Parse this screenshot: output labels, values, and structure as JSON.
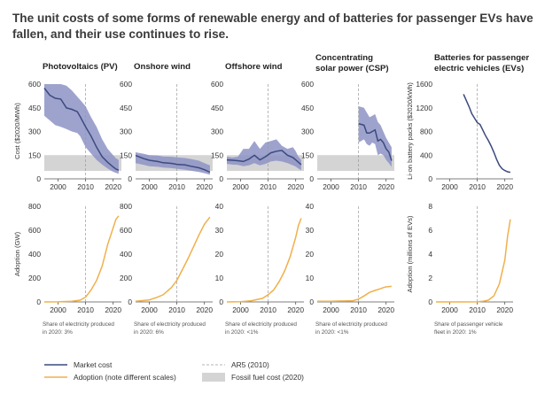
{
  "title": "The unit costs of some forms of renewable energy and of batteries for passenger EVs have fallen, and their use continues to rise.",
  "colors": {
    "market_cost": "#3c4a7c",
    "cost_range": "#8d93c6",
    "adoption": "#f0b04a",
    "fossil_band": "#d4d4d4",
    "ar5_line": "#9a9a9a"
  },
  "legend": {
    "market_cost": "Market cost",
    "adoption": "Adoption (note different scales)",
    "ar5": "AR5 (2010)",
    "fossil": "Fossil fuel cost (2020)"
  },
  "cost_ylabel_energy": "Cost ($2020/MWh)",
  "cost_ylabel_batteries": "Li-on battery packs ($2020/kWh)",
  "adoption_ylabel_energy": "Adoption (GW)",
  "adoption_ylabel_evs": "Adoption (millions of EVs)",
  "fossil_cost_range": [
    50,
    150
  ],
  "ar5_year": 2010,
  "chart_data": [
    {
      "type": "line",
      "panel": "Photovoltaics (PV)",
      "cost": {
        "xlim": [
          1995,
          2023
        ],
        "ylim": [
          0,
          600
        ],
        "yticks": [
          0,
          150,
          300,
          450,
          600
        ],
        "xticks": [
          2000,
          2010,
          2020
        ],
        "x": [
          1995,
          1997,
          1999,
          2001,
          2003,
          2005,
          2007,
          2008,
          2010,
          2012,
          2014,
          2016,
          2018,
          2020,
          2021,
          2022
        ],
        "market_cost": [
          575,
          530,
          510,
          505,
          450,
          440,
          425,
          395,
          330,
          270,
          200,
          140,
          105,
          75,
          62,
          55
        ],
        "range_low": [
          400,
          370,
          340,
          330,
          315,
          300,
          290,
          270,
          200,
          160,
          120,
          90,
          65,
          45,
          38,
          32
        ],
        "range_high": [
          600,
          600,
          600,
          600,
          590,
          560,
          520,
          500,
          460,
          390,
          330,
          250,
          190,
          150,
          130,
          120
        ],
        "fossil_band": true
      },
      "adoption": {
        "xlim": [
          1995,
          2023
        ],
        "ylim": [
          0,
          800
        ],
        "yticks": [
          0,
          200,
          400,
          600,
          800
        ],
        "xticks": [
          2000,
          2010,
          2020
        ],
        "x": [
          1995,
          2000,
          2005,
          2008,
          2010,
          2012,
          2014,
          2016,
          2018,
          2020,
          2021,
          2022
        ],
        "values": [
          0,
          1,
          5,
          15,
          40,
          100,
          180,
          300,
          480,
          620,
          690,
          720
        ]
      },
      "share": "Share of electricity produced in 2020: 3%"
    },
    {
      "type": "line",
      "panel": "Onshore wind",
      "cost": {
        "xlim": [
          1995,
          2023
        ],
        "ylim": [
          0,
          600
        ],
        "yticks": [
          0,
          150,
          300,
          450,
          600
        ],
        "xticks": [
          2000,
          2010,
          2020
        ],
        "x": [
          1995,
          1998,
          2000,
          2003,
          2005,
          2008,
          2010,
          2013,
          2015,
          2018,
          2020,
          2022
        ],
        "market_cost": [
          148,
          128,
          118,
          110,
          102,
          98,
          92,
          88,
          80,
          70,
          58,
          42
        ],
        "range_low": [
          100,
          88,
          80,
          76,
          72,
          68,
          64,
          58,
          52,
          44,
          36,
          26
        ],
        "range_high": [
          168,
          158,
          150,
          148,
          142,
          140,
          136,
          132,
          126,
          115,
          100,
          85
        ],
        "fossil_band": true
      },
      "adoption": {
        "xlim": [
          1995,
          2023
        ],
        "ylim": [
          0,
          800
        ],
        "yticks": [
          0,
          200,
          400,
          600,
          800
        ],
        "xticks": [
          2000,
          2010,
          2020
        ],
        "x": [
          1995,
          2000,
          2003,
          2005,
          2008,
          2010,
          2012,
          2014,
          2016,
          2018,
          2020,
          2022
        ],
        "values": [
          5,
          17,
          40,
          60,
          120,
          180,
          270,
          360,
          460,
          560,
          650,
          710
        ]
      },
      "share": "Share of electricity produced in 2020: 6%"
    },
    {
      "type": "line",
      "panel": "Offshore wind",
      "cost": {
        "xlim": [
          1995,
          2023
        ],
        "ylim": [
          0,
          600
        ],
        "yticks": [
          0,
          150,
          300,
          450,
          600
        ],
        "xticks": [
          2000,
          2010,
          2020
        ],
        "x": [
          1995,
          1997,
          1999,
          2001,
          2003,
          2005,
          2007,
          2009,
          2011,
          2013,
          2015,
          2017,
          2019,
          2020,
          2021,
          2022
        ],
        "market_cost": [
          120,
          118,
          115,
          110,
          125,
          150,
          120,
          140,
          165,
          175,
          180,
          150,
          135,
          120,
          105,
          90
        ],
        "range_low": [
          95,
          90,
          88,
          80,
          85,
          100,
          85,
          95,
          110,
          115,
          110,
          100,
          85,
          78,
          65,
          55
        ],
        "range_high": [
          140,
          135,
          140,
          190,
          190,
          240,
          190,
          230,
          240,
          250,
          210,
          190,
          200,
          175,
          140,
          120
        ],
        "fossil_band": true
      },
      "adoption": {
        "xlim": [
          1995,
          2023
        ],
        "ylim": [
          0,
          40
        ],
        "yticks": [
          0,
          10,
          20,
          30,
          40
        ],
        "xticks": [
          2000,
          2010,
          2020
        ],
        "x": [
          1995,
          2000,
          2004,
          2008,
          2010,
          2012,
          2014,
          2016,
          2018,
          2020,
          2021,
          2022
        ],
        "values": [
          0,
          0.1,
          0.5,
          1.5,
          3,
          5,
          8.5,
          13,
          19,
          27,
          32,
          35
        ]
      },
      "share": "Share of electricity produced in 2020: <1%"
    },
    {
      "type": "line",
      "panel": "Concentrating solar power (CSP)",
      "cost": {
        "xlim": [
          1995,
          2023
        ],
        "ylim": [
          0,
          600
        ],
        "yticks": [
          0,
          150,
          300,
          450,
          600
        ],
        "xticks": [
          2000,
          2010,
          2020
        ],
        "x": [
          2010,
          2012,
          2013,
          2014,
          2015,
          2016,
          2017,
          2018,
          2019,
          2020,
          2021,
          2022
        ],
        "market_cost": [
          350,
          340,
          290,
          290,
          300,
          310,
          240,
          250,
          230,
          190,
          170,
          115
        ],
        "range_low": [
          230,
          250,
          220,
          210,
          230,
          220,
          150,
          160,
          150,
          120,
          100,
          75
        ],
        "range_high": [
          460,
          450,
          420,
          390,
          400,
          410,
          360,
          340,
          300,
          260,
          230,
          200
        ],
        "fossil_band": true
      },
      "adoption": {
        "xlim": [
          1995,
          2023
        ],
        "ylim": [
          0,
          40
        ],
        "yticks": [
          0,
          10,
          20,
          30,
          40
        ],
        "xticks": [
          2000,
          2010,
          2020
        ],
        "x": [
          1995,
          2000,
          2005,
          2008,
          2010,
          2012,
          2014,
          2016,
          2018,
          2019,
          2020,
          2022
        ],
        "values": [
          0.3,
          0.3,
          0.4,
          0.5,
          1.2,
          2.5,
          4,
          4.8,
          5.5,
          6,
          6.3,
          6.5
        ]
      },
      "share": "Share of electricity produced in 2020: <1%"
    },
    {
      "type": "line",
      "panel": "Batteries for passenger electric vehicles (EVs)",
      "cost": {
        "xlim": [
          1995,
          2023
        ],
        "ylim": [
          0,
          1600
        ],
        "yticks": [
          0,
          400,
          800,
          1200,
          1600
        ],
        "xticks": [
          2000,
          2010,
          2020
        ],
        "x": [
          2005,
          2007,
          2008,
          2010,
          2011,
          2013,
          2014,
          2015,
          2016,
          2017,
          2018,
          2019,
          2020,
          2021,
          2022
        ],
        "market_cost": [
          1430,
          1220,
          1100,
          950,
          920,
          730,
          650,
          560,
          450,
          330,
          230,
          170,
          140,
          120,
          110
        ],
        "fossil_band": false
      },
      "adoption": {
        "xlim": [
          1995,
          2023
        ],
        "ylim": [
          0,
          8
        ],
        "yticks": [
          0,
          2,
          4,
          6,
          8
        ],
        "xticks": [
          2000,
          2010,
          2020
        ],
        "x": [
          1995,
          2005,
          2010,
          2012,
          2014,
          2016,
          2018,
          2019,
          2020,
          2021,
          2022
        ],
        "values": [
          0,
          0,
          0.01,
          0.05,
          0.15,
          0.5,
          1.5,
          2.5,
          3.5,
          5.5,
          6.9
        ]
      },
      "share": "Share of passenger vehicle fleet in 2020: 1%"
    }
  ]
}
